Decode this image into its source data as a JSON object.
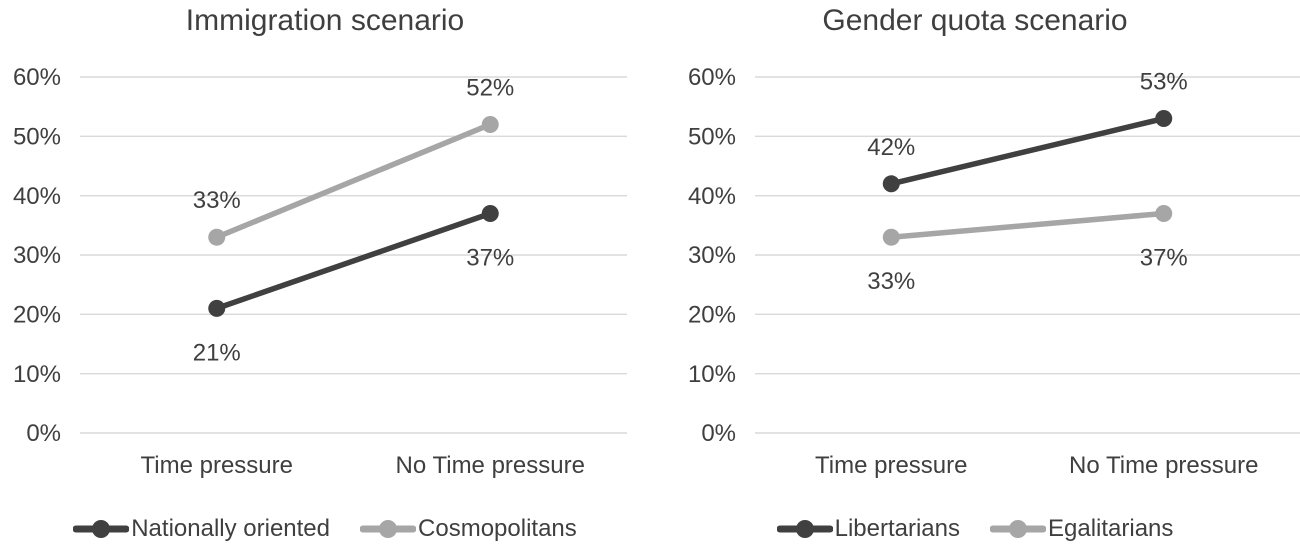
{
  "figure": {
    "background": "#ffffff",
    "text_color": "#3f3f3f",
    "gridline_color": "#d9d9d9"
  },
  "chart_data": [
    {
      "type": "line",
      "title": "Immigration scenario",
      "categories": [
        "Time pressure",
        "No Time pressure"
      ],
      "y_ticks": [
        "0%",
        "10%",
        "20%",
        "30%",
        "40%",
        "50%",
        "60%"
      ],
      "ylim": [
        0,
        60
      ],
      "grid": true,
      "legend_position": "bottom",
      "series": [
        {
          "name": "Nationally oriented",
          "values": [
            21,
            37
          ],
          "labels": [
            "21%",
            "37%"
          ],
          "label_position": [
            "below",
            "below"
          ],
          "color": "#404040"
        },
        {
          "name": "Cosmopolitans",
          "values": [
            33,
            52
          ],
          "labels": [
            "33%",
            "52%"
          ],
          "label_position": [
            "above",
            "above"
          ],
          "color": "#a6a6a6"
        }
      ]
    },
    {
      "type": "line",
      "title": "Gender quota scenario",
      "categories": [
        "Time pressure",
        "No Time pressure"
      ],
      "y_ticks": [
        "0%",
        "10%",
        "20%",
        "30%",
        "40%",
        "50%",
        "60%"
      ],
      "ylim": [
        0,
        60
      ],
      "grid": true,
      "legend_position": "bottom",
      "series": [
        {
          "name": "Libertarians",
          "values": [
            42,
            53
          ],
          "labels": [
            "42%",
            "53%"
          ],
          "label_position": [
            "above",
            "above"
          ],
          "color": "#404040"
        },
        {
          "name": "Egalitarians",
          "values": [
            33,
            37
          ],
          "labels": [
            "33%",
            "37%"
          ],
          "label_position": [
            "below",
            "below"
          ],
          "color": "#a6a6a6"
        }
      ]
    }
  ]
}
